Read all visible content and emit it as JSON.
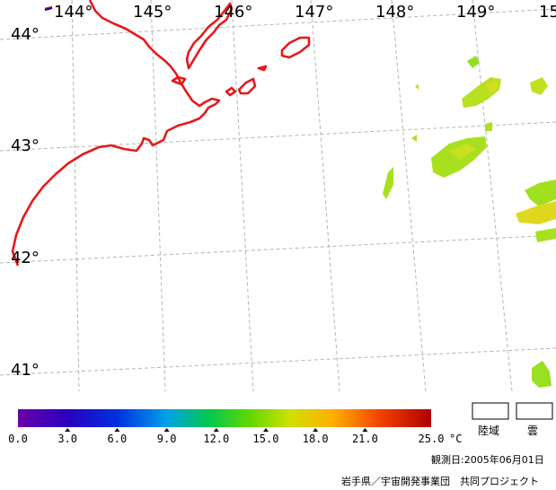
{
  "map": {
    "longitude_labels": [
      "144°",
      "145°",
      "146°",
      "147°",
      "148°",
      "149°",
      "15"
    ],
    "latitude_labels": [
      "44°",
      "43°",
      "42°",
      "41°"
    ],
    "colors": {
      "coastline": "#e81818",
      "graticule": "#b0b0b0",
      "sst_low": "#a0e020",
      "sst_mid": "#c8e020",
      "sst_high": "#e8d820"
    }
  },
  "colorbar": {
    "ticks": [
      "0.0",
      "3.0",
      "6.0",
      "9.0",
      "12.0",
      "15.0",
      "18.0",
      "21.0",
      "25.0"
    ],
    "unit": "°C",
    "range": [
      0.0,
      25.0
    ],
    "gradient": [
      "#6a00a8",
      "#0000c8",
      "#0070ff",
      "#00c8c8",
      "#00c800",
      "#a0e000",
      "#ffe000",
      "#ff7000",
      "#c00000"
    ]
  },
  "legend": {
    "land_label": "陸域",
    "cloud_label": "雲"
  },
  "footer": {
    "observation_date": "観測日:2005年06月01日",
    "credit": "岩手県／宇宙開発事業団　共同プロジェクト"
  }
}
